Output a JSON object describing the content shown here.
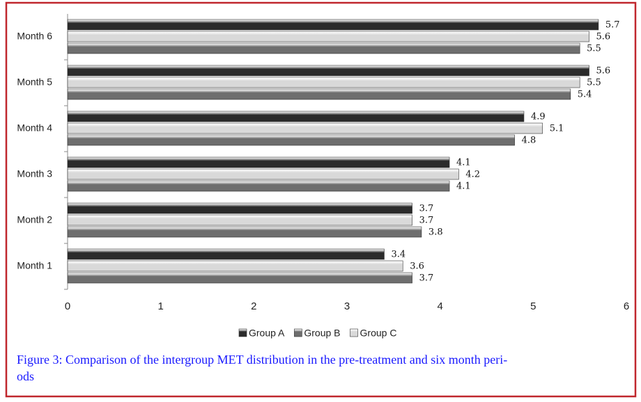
{
  "chart_data": {
    "type": "bar",
    "orientation": "horizontal",
    "categories": [
      "Month 1",
      "Month 2",
      "Month 3",
      "Month 4",
      "Month 5",
      "Month 6"
    ],
    "series": [
      {
        "name": "Group A",
        "color": "#2b2b2b",
        "values": [
          3.4,
          3.7,
          4.1,
          4.9,
          5.6,
          5.7
        ]
      },
      {
        "name": "Group B",
        "color": "#6e6e6e",
        "values": [
          3.7,
          3.8,
          4.1,
          4.8,
          5.4,
          5.5
        ]
      },
      {
        "name": "Group C",
        "color": "#d9d9d9",
        "values": [
          3.6,
          3.7,
          4.2,
          5.1,
          5.5,
          5.6
        ]
      }
    ],
    "xlim": [
      0,
      6
    ],
    "xticks": [
      0,
      1,
      2,
      3,
      4,
      5,
      6
    ],
    "grid": false,
    "legend": "bottom",
    "caption": [
      "Figure 3: Comparison of the intergroup MET distribution in the pre-treatment and six month peri-",
      "ods"
    ]
  }
}
